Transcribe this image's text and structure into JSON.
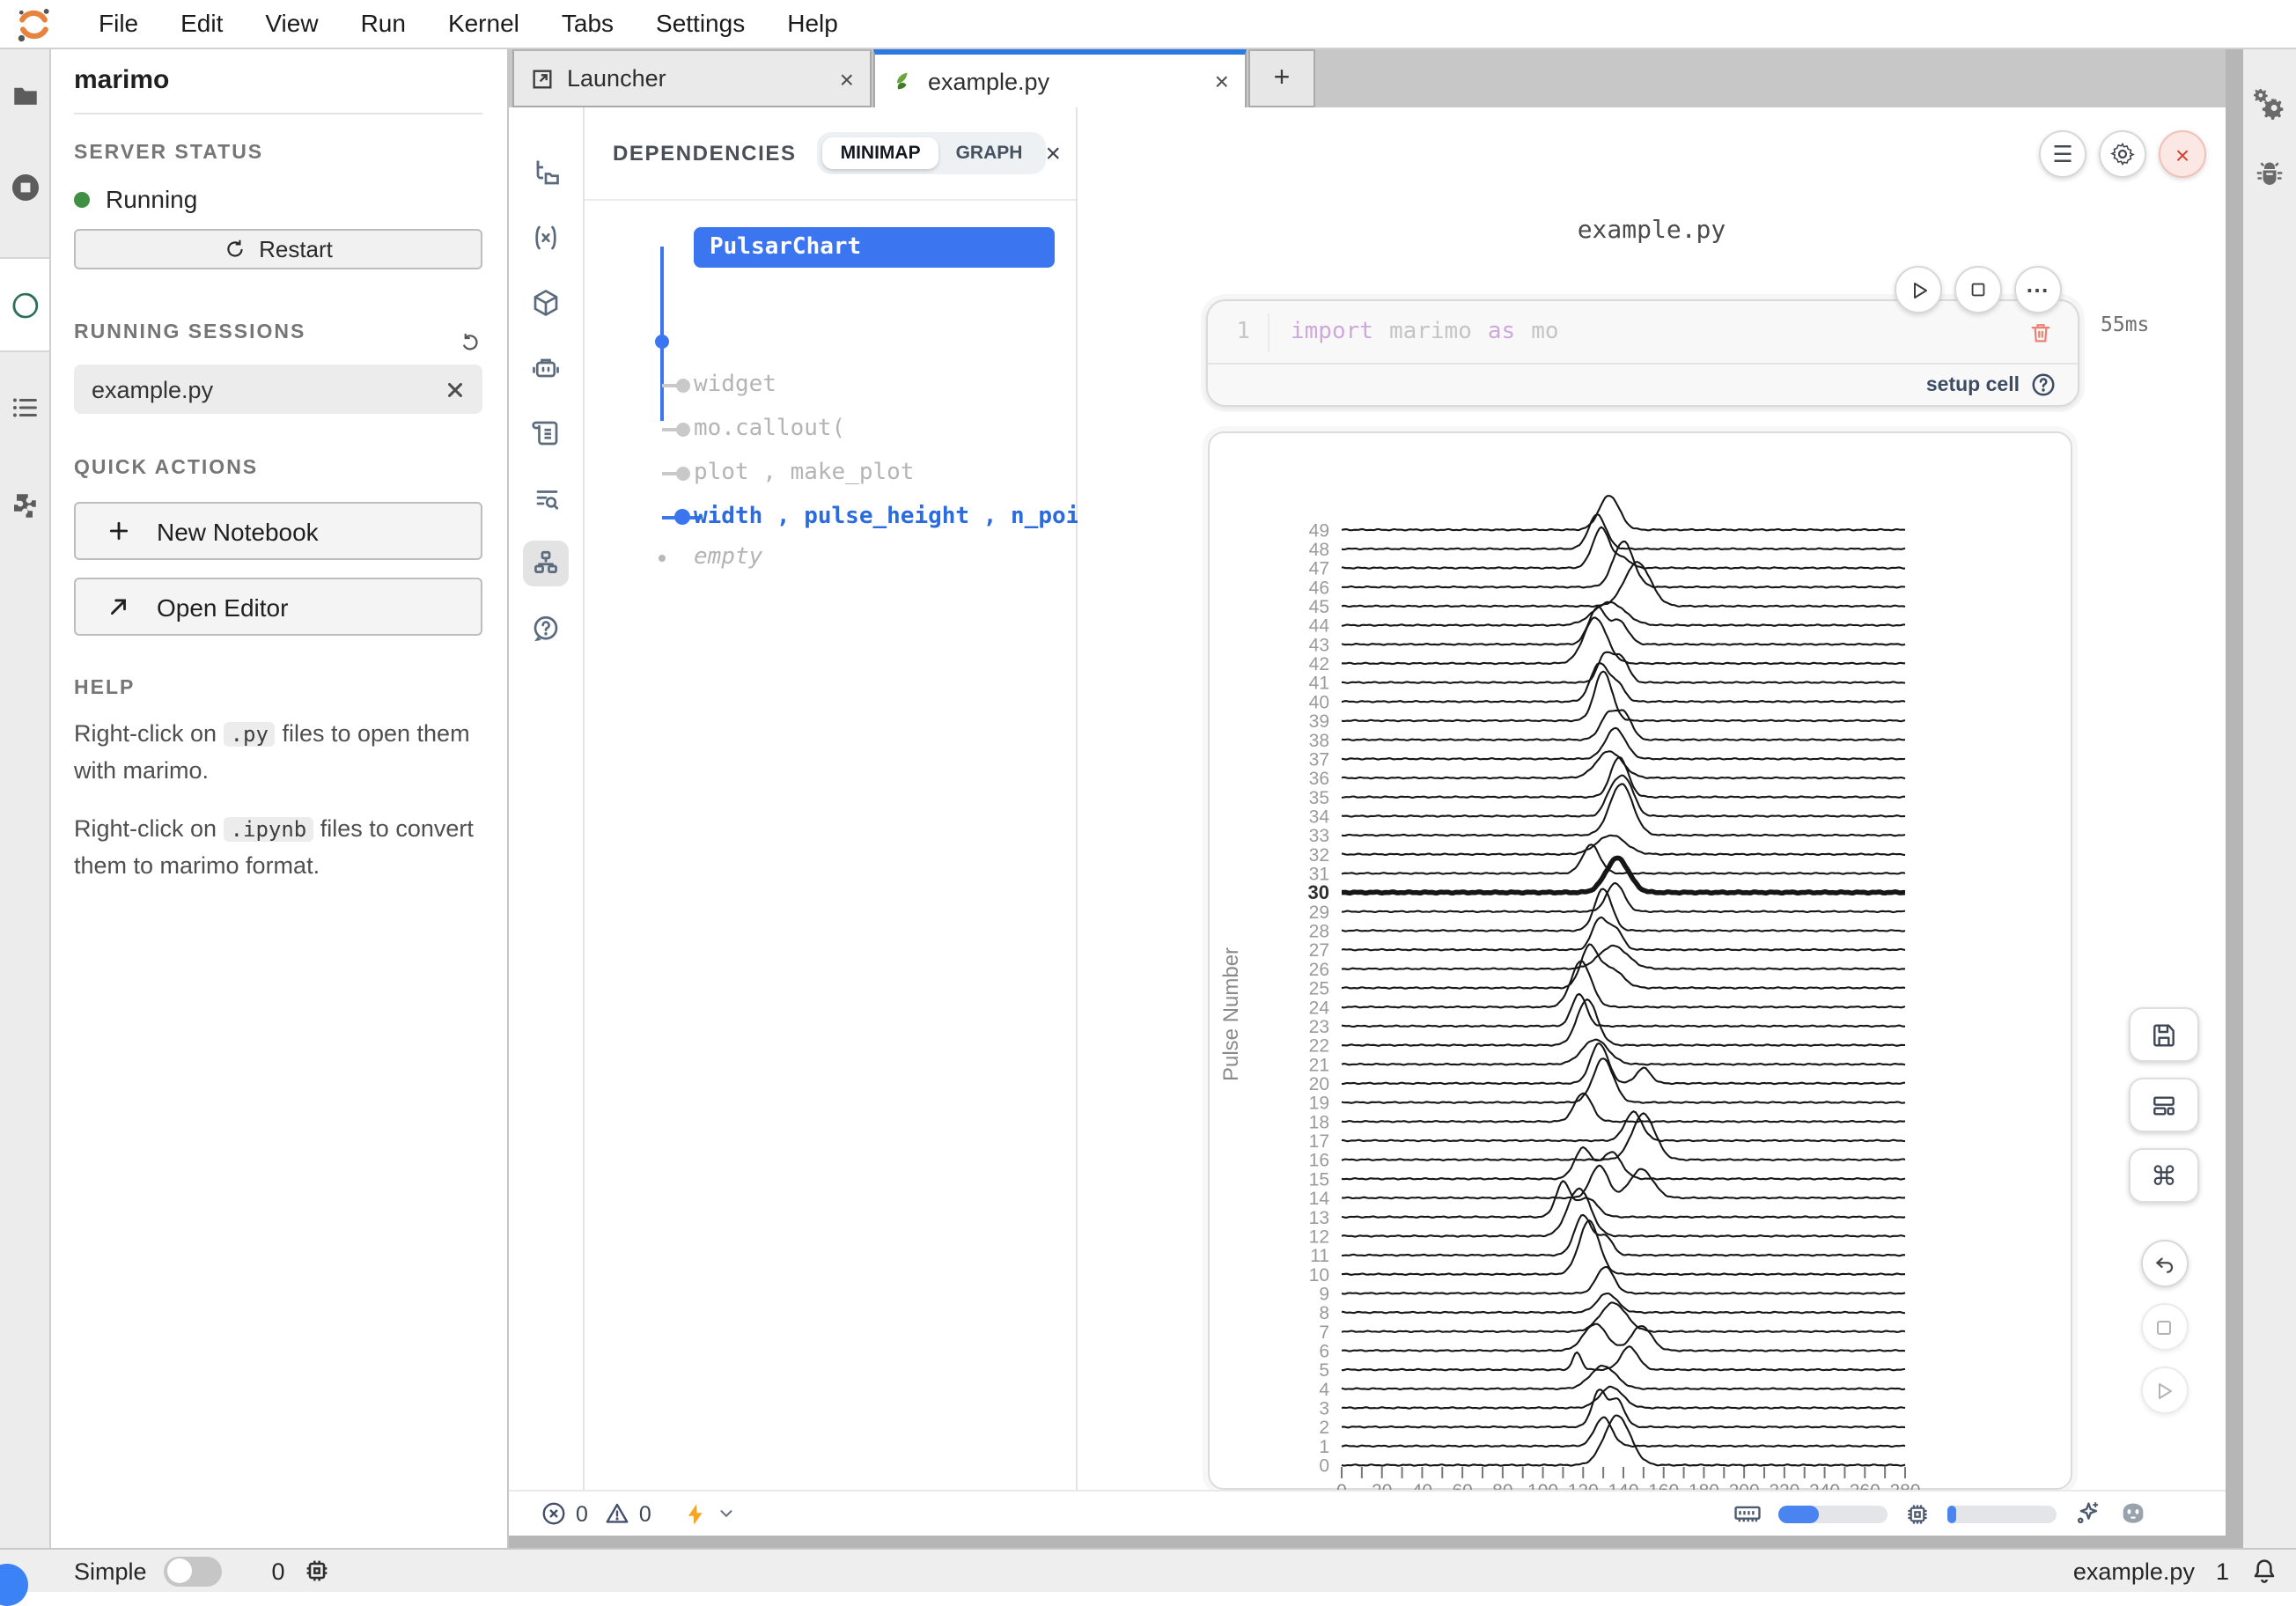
{
  "menu": {
    "items": [
      "File",
      "Edit",
      "View",
      "Run",
      "Kernel",
      "Tabs",
      "Settings",
      "Help"
    ]
  },
  "left_panel": {
    "title": "marimo",
    "server_status_heading": "SERVER STATUS",
    "server_state": "Running",
    "restart_label": "Restart",
    "sessions_heading": "RUNNING SESSIONS",
    "session_name": "example.py",
    "quick_actions_heading": "QUICK ACTIONS",
    "new_notebook_label": "New Notebook",
    "open_editor_label": "Open Editor",
    "help_heading": "HELP",
    "help1_pre": "Right-click on ",
    "help1_code": ".py",
    "help1_post": " files to open them with marimo.",
    "help2_pre": "Right-click on ",
    "help2_code": ".ipynb",
    "help2_post": " files to convert them to marimo format."
  },
  "tabs": {
    "launcher_label": "Launcher",
    "active_label": "example.py",
    "add_label": "+"
  },
  "dependencies": {
    "heading": "DEPENDENCIES",
    "mode_minimap": "MINIMAP",
    "mode_graph": "GRAPH",
    "root": "PulsarChart",
    "item1": "widget",
    "item2": "mo.callout(",
    "item3": "plot , make_plot",
    "item4": "width , pulse_height , n_poi",
    "item5": "empty"
  },
  "notebook": {
    "title": "example.py",
    "cell_line_no": "1",
    "code_kw1": "import",
    "code_id1": "marimo",
    "code_kw2": "as",
    "code_id2": "mo",
    "timing": "55ms",
    "setup_label": "setup cell",
    "ellipsis": "..."
  },
  "editor_footer": {
    "errors": "0",
    "warnings": "0",
    "mem_percent": 37,
    "cpu_percent": 8
  },
  "statusbar": {
    "mode_label": "Simple",
    "kernel_count": "0",
    "file_label": "example.py",
    "notification_count": "1"
  },
  "colors": {
    "accent_blue": "#3b76f0",
    "tab_accent": "#2a7ae2",
    "status_green": "#3f8f44",
    "danger_red": "#cf4437",
    "lightning_amber": "#f5a623"
  },
  "chart_data": {
    "type": "ridgeline",
    "title": "",
    "ylabel": "Pulse Number",
    "xlabel": "",
    "x_min": 0,
    "x_max": 280,
    "x_tick_minor": 10,
    "x_tick_label_step": 20,
    "highlight_pulse": 30,
    "rows": [
      {
        "pulse": 0,
        "peaks": [
          [
            137,
            9,
            2.6
          ]
        ]
      },
      {
        "pulse": 1,
        "peaks": [
          [
            130,
            6,
            1.5
          ]
        ]
      },
      {
        "pulse": 2,
        "peaks": [
          [
            128,
            5,
            1.9
          ],
          [
            137,
            5,
            1.4
          ]
        ]
      },
      {
        "pulse": 3,
        "peaks": [
          [
            134,
            8,
            1.1
          ]
        ]
      },
      {
        "pulse": 4,
        "peaks": [
          [
            130,
            9,
            1.2
          ]
        ]
      },
      {
        "pulse": 5,
        "peaks": [
          [
            117,
            3,
            0.9
          ],
          [
            143,
            6,
            1.2
          ]
        ]
      },
      {
        "pulse": 6,
        "peaks": [
          [
            126,
            8,
            1.4
          ],
          [
            149,
            7,
            1.3
          ]
        ]
      },
      {
        "pulse": 7,
        "peaks": [
          [
            135,
            9,
            1.5
          ]
        ]
      },
      {
        "pulse": 8,
        "peaks": [
          [
            132,
            7,
            1.0
          ]
        ]
      },
      {
        "pulse": 9,
        "peaks": [
          [
            131,
            6,
            1.4
          ]
        ]
      },
      {
        "pulse": 10,
        "peaks": [
          [
            123,
            7,
            2.8
          ]
        ]
      },
      {
        "pulse": 11,
        "peaks": [
          [
            120,
            6,
            2.1
          ],
          [
            131,
            5,
            1.0
          ]
        ]
      },
      {
        "pulse": 12,
        "peaks": [
          [
            118,
            8,
            2.5
          ]
        ]
      },
      {
        "pulse": 13,
        "peaks": [
          [
            110,
            5,
            1.8
          ],
          [
            122,
            7,
            1.0
          ]
        ]
      },
      {
        "pulse": 14,
        "peaks": [
          [
            128,
            6,
            1.7
          ],
          [
            149,
            8,
            1.5
          ]
        ]
      },
      {
        "pulse": 15,
        "peaks": [
          [
            120,
            6,
            1.6
          ],
          [
            134,
            7,
            1.4
          ]
        ]
      },
      {
        "pulse": 16,
        "peaks": [
          [
            150,
            8,
            2.4
          ]
        ]
      },
      {
        "pulse": 17,
        "peaks": [
          [
            145,
            6,
            1.5
          ]
        ]
      },
      {
        "pulse": 18,
        "peaks": [
          [
            120,
            6,
            1.5
          ]
        ]
      },
      {
        "pulse": 19,
        "peaks": [
          [
            130,
            7,
            2.3
          ]
        ]
      },
      {
        "pulse": 20,
        "peaks": [
          [
            128,
            6,
            2.1
          ],
          [
            150,
            5,
            0.8
          ]
        ]
      },
      {
        "pulse": 21,
        "peaks": [
          [
            126,
            9,
            1.3
          ]
        ]
      },
      {
        "pulse": 22,
        "peaks": [
          [
            122,
            7,
            2.4
          ]
        ]
      },
      {
        "pulse": 23,
        "peaks": [
          [
            118,
            5,
            1.7
          ]
        ]
      },
      {
        "pulse": 24,
        "peaks": [
          [
            119,
            7,
            2.4
          ]
        ]
      },
      {
        "pulse": 25,
        "peaks": [
          [
            123,
            6,
            2.1
          ],
          [
            134,
            8,
            1.0
          ]
        ]
      },
      {
        "pulse": 26,
        "peaks": [
          [
            135,
            10,
            1.2
          ]
        ]
      },
      {
        "pulse": 27,
        "peaks": [
          [
            128,
            5,
            1.6
          ],
          [
            136,
            5,
            1.1
          ]
        ]
      },
      {
        "pulse": 28,
        "peaks": [
          [
            130,
            6,
            2.2
          ]
        ]
      },
      {
        "pulse": 29,
        "peaks": [
          [
            136,
            6,
            1.5
          ]
        ]
      },
      {
        "pulse": 30,
        "peaks": [
          [
            137,
            8,
            1.8
          ]
        ]
      },
      {
        "pulse": 31,
        "peaks": [
          [
            124,
            6,
            1.5
          ]
        ]
      },
      {
        "pulse": 32,
        "peaks": [
          [
            134,
            10,
            1.0
          ]
        ]
      },
      {
        "pulse": 33,
        "peaks": [
          [
            139,
            8,
            2.7
          ]
        ]
      },
      {
        "pulse": 34,
        "peaks": [
          [
            134,
            5,
            1.1
          ],
          [
            141,
            6,
            1.9
          ]
        ]
      },
      {
        "pulse": 35,
        "peaks": [
          [
            138,
            6,
            2.1
          ]
        ]
      },
      {
        "pulse": 36,
        "peaks": [
          [
            133,
            9,
            1.4
          ]
        ]
      },
      {
        "pulse": 37,
        "peaks": [
          [
            136,
            7,
            1.6
          ]
        ]
      },
      {
        "pulse": 38,
        "peaks": [
          [
            133,
            6,
            1.4
          ],
          [
            141,
            5,
            1.2
          ]
        ]
      },
      {
        "pulse": 39,
        "peaks": [
          [
            130,
            6,
            2.6
          ]
        ]
      },
      {
        "pulse": 40,
        "peaks": [
          [
            128,
            6,
            2.0
          ],
          [
            137,
            5,
            0.9
          ]
        ]
      },
      {
        "pulse": 41,
        "peaks": [
          [
            131,
            5,
            1.5
          ],
          [
            139,
            5,
            1.3
          ]
        ]
      },
      {
        "pulse": 42,
        "peaks": [
          [
            126,
            8,
            2.4
          ]
        ]
      },
      {
        "pulse": 43,
        "peaks": [
          [
            127,
            6,
            1.9
          ],
          [
            138,
            6,
            1.2
          ]
        ]
      },
      {
        "pulse": 44,
        "peaks": [
          [
            133,
            11,
            1.2
          ]
        ]
      },
      {
        "pulse": 45,
        "peaks": [
          [
            147,
            9,
            2.3
          ]
        ]
      },
      {
        "pulse": 46,
        "peaks": [
          [
            140,
            7,
            2.4
          ]
        ]
      },
      {
        "pulse": 47,
        "peaks": [
          [
            129,
            6,
            2.1
          ],
          [
            140,
            5,
            0.5
          ]
        ]
      },
      {
        "pulse": 48,
        "peaks": [
          [
            127,
            6,
            1.8
          ]
        ]
      },
      {
        "pulse": 49,
        "peaks": [
          [
            133,
            7,
            1.8
          ]
        ]
      }
    ]
  }
}
